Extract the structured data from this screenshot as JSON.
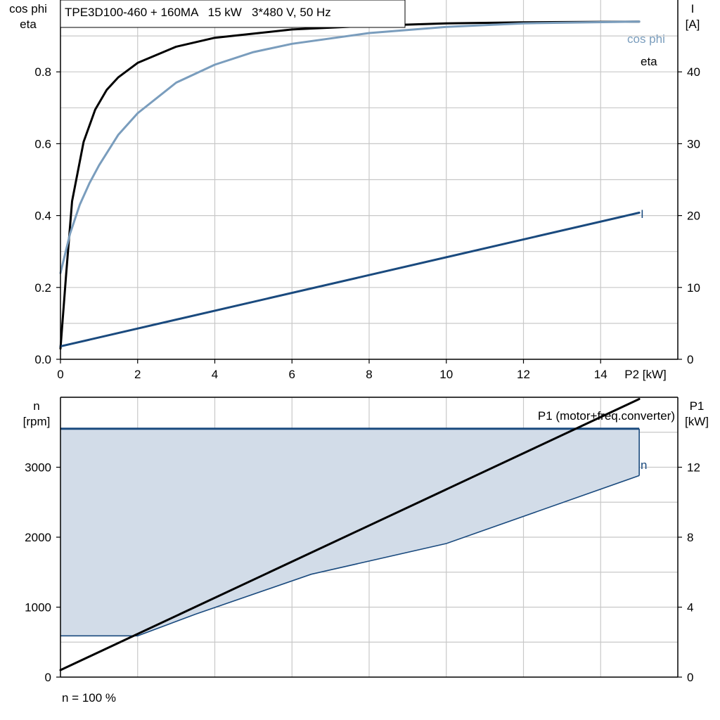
{
  "chart_data": [
    {
      "type": "line",
      "title": "TPE3D100-460 + 160MA   15 kW   3*480 V, 50 Hz",
      "left_axis_label_line1": "cos phi",
      "left_axis_label_line2": "eta",
      "right_axis_label_line1": "I",
      "right_axis_label_line2": "[A]",
      "xlabel": "P2 [kW]",
      "xlim": [
        0,
        16
      ],
      "ylim_left": [
        0,
        1.0
      ],
      "ylim_right": [
        0,
        50
      ],
      "x_ticks": [
        0,
        2,
        4,
        6,
        8,
        10,
        12,
        14
      ],
      "x_tick_labels": [
        "0",
        "2",
        "4",
        "6",
        "8",
        "10",
        "12",
        "14"
      ],
      "y_left_ticks": [
        0,
        0.2,
        0.4,
        0.6,
        0.8
      ],
      "y_left_tick_labels": [
        "0.0",
        "0.2",
        "0.4",
        "0.6",
        "0.8"
      ],
      "y_right_ticks": [
        0,
        10,
        20,
        30,
        40
      ],
      "y_right_tick_labels": [
        "0",
        "10",
        "20",
        "30",
        "40"
      ],
      "grid": true,
      "series": [
        {
          "name": "eta",
          "axis": "left",
          "color": "#000000",
          "x": [
            0,
            0.15,
            0.3,
            0.6,
            0.9,
            1.2,
            1.5,
            2,
            3,
            4,
            6,
            8,
            10,
            12,
            15
          ],
          "y": [
            0.03,
            0.24,
            0.44,
            0.605,
            0.695,
            0.75,
            0.785,
            0.825,
            0.87,
            0.895,
            0.918,
            0.928,
            0.935,
            0.938,
            0.94
          ]
        },
        {
          "name": "cos phi",
          "axis": "left",
          "color": "#7a9dbd",
          "x": [
            0,
            0.25,
            0.5,
            0.75,
            1,
            1.5,
            2,
            3,
            4,
            5,
            6,
            8,
            10,
            12,
            15
          ],
          "y": [
            0.24,
            0.35,
            0.43,
            0.49,
            0.54,
            0.625,
            0.685,
            0.77,
            0.82,
            0.855,
            0.878,
            0.908,
            0.925,
            0.935,
            0.94
          ]
        },
        {
          "name": "I",
          "axis": "right",
          "color": "#1a4a7e",
          "x": [
            0,
            15
          ],
          "y": [
            1.8,
            20.4
          ]
        }
      ]
    },
    {
      "type": "area",
      "left_axis_label_line1": "n",
      "left_axis_label_line2": "[rpm]",
      "right_axis_label_line1": "P1",
      "right_axis_label_line2": "[kW]",
      "xlim": [
        0,
        16
      ],
      "ylim_left": [
        0,
        4000
      ],
      "ylim_right": [
        0,
        16
      ],
      "y_left_ticks": [
        0,
        1000,
        2000,
        3000
      ],
      "y_left_tick_labels": [
        "0",
        "1000",
        "2000",
        "3000"
      ],
      "y_right_ticks": [
        0,
        4,
        8,
        12
      ],
      "y_right_tick_labels": [
        "0",
        "4",
        "8",
        "12"
      ],
      "grid": true,
      "footnote": "n = 100 %",
      "series": [
        {
          "name": "n",
          "axis": "left",
          "color": "#1a4a7e",
          "fill": "#d2dce8",
          "x_upper": [
            0,
            15
          ],
          "y_upper": [
            3550,
            3550
          ],
          "x_lower": [
            0,
            2,
            3.5,
            6.5,
            10,
            15
          ],
          "y_lower": [
            590,
            590,
            900,
            1470,
            1910,
            2880
          ]
        },
        {
          "name": "P1 (motor+freq.converter)",
          "axis": "right",
          "color": "#000000",
          "x": [
            0,
            15
          ],
          "y": [
            0.4,
            15.9
          ]
        }
      ]
    }
  ]
}
